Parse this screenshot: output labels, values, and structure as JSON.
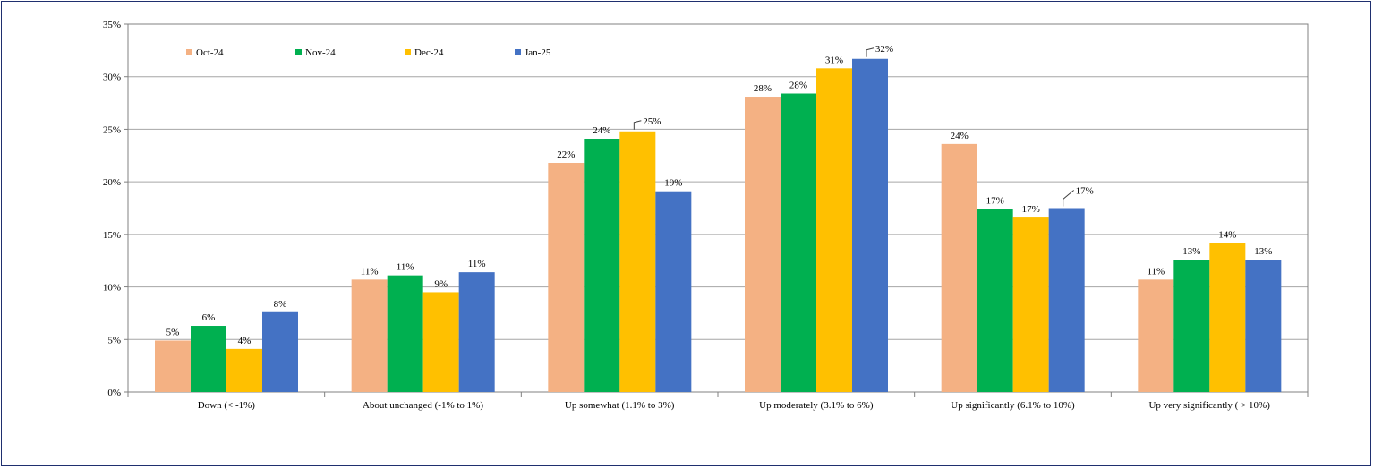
{
  "chart_data": {
    "type": "bar",
    "categories": [
      "Down (< -1%)",
      "About unchanged (-1% to 1%)",
      "Up somewhat (1.1% to 3%)",
      "Up moderately (3.1% to 6%)",
      "Up significantly (6.1% to 10%)",
      "Up very significantly ( > 10%)"
    ],
    "series": [
      {
        "name": "Oct-24",
        "color": "#F4B183",
        "values": [
          4.9,
          10.7,
          21.8,
          28.1,
          23.6,
          10.7
        ],
        "labels": [
          "5%",
          "11%",
          "22%",
          "28%",
          "24%",
          "11%"
        ]
      },
      {
        "name": "Nov-24",
        "color": "#00B050",
        "values": [
          6.3,
          11.1,
          24.1,
          28.4,
          17.4,
          12.6
        ],
        "labels": [
          "6%",
          "11%",
          "24%",
          "28%",
          "17%",
          "13%"
        ]
      },
      {
        "name": "Dec-24",
        "color": "#FFC000",
        "values": [
          4.1,
          9.5,
          24.8,
          30.8,
          16.6,
          14.2
        ],
        "labels": [
          "4%",
          "9%",
          "25%",
          "31%",
          "17%",
          "14%"
        ]
      },
      {
        "name": "Jan-25",
        "color": "#4472C4",
        "values": [
          7.6,
          11.4,
          19.1,
          31.7,
          17.5,
          12.6
        ],
        "labels": [
          "8%",
          "11%",
          "19%",
          "32%",
          "17%",
          "13%"
        ]
      }
    ],
    "ylim": [
      0,
      35
    ],
    "yticks": [
      0,
      5,
      10,
      15,
      20,
      25,
      30,
      35
    ],
    "ytick_labels": [
      "0%",
      "5%",
      "10%",
      "15%",
      "20%",
      "25%",
      "30%",
      "35%"
    ],
    "grid": true,
    "legend": "top-left inside plot",
    "title": "",
    "xlabel": "",
    "ylabel": ""
  }
}
